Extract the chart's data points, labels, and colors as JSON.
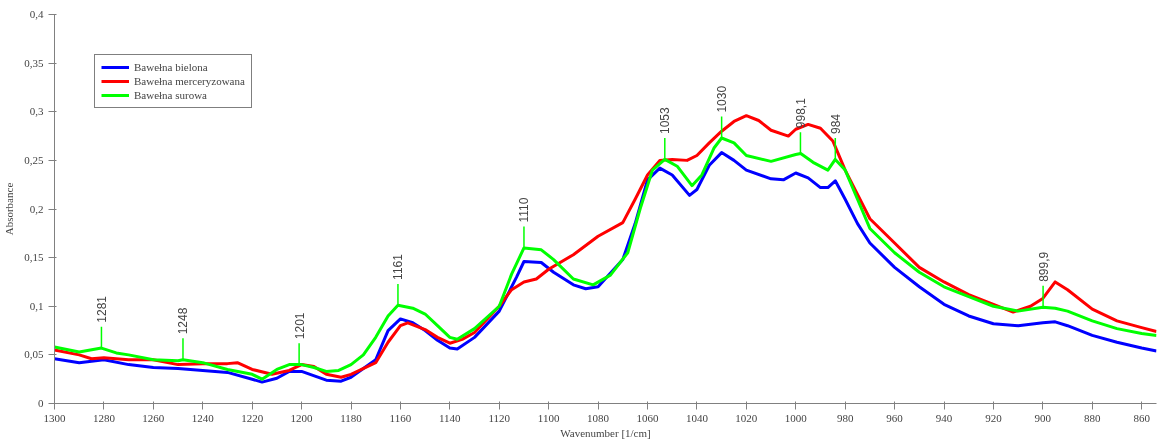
{
  "chart_data": {
    "type": "line",
    "xlabel": "Wavenumber [1/cm]",
    "ylabel": "Absorbance",
    "xlim": [
      1300,
      854
    ],
    "xticks": [
      1300,
      1280,
      1260,
      1240,
      1220,
      1200,
      1180,
      1160,
      1140,
      1120,
      1100,
      1080,
      1060,
      1040,
      1020,
      1000,
      980,
      960,
      940,
      920,
      900,
      880,
      860
    ],
    "ylim": [
      0,
      0.4
    ],
    "yticks": [
      0,
      {
        "value": 0.05,
        "label": "0,05"
      },
      {
        "value": 0.1,
        "label": "0,1"
      },
      {
        "value": 0.15,
        "label": "0,15"
      },
      {
        "value": 0.2,
        "label": "0,2"
      },
      {
        "value": 0.25,
        "label": "0,25"
      },
      {
        "value": 0.3,
        "label": "0,3"
      },
      {
        "value": 0.35,
        "label": "0,35"
      },
      {
        "value": 0.4,
        "label": "0,4"
      }
    ],
    "grid": false,
    "legend": "top left",
    "marker": "none",
    "line_style": "solid",
    "series": [
      {
        "name": "Bawełna bielona",
        "color": "#0000ff",
        "x": [
          1300,
          1290,
          1280,
          1270,
          1260,
          1250,
          1240,
          1230,
          1220,
          1216,
          1210,
          1205,
          1200,
          1190,
          1184,
          1180,
          1170,
          1165,
          1160,
          1155,
          1150,
          1145,
          1140,
          1137,
          1130,
          1120,
          1113,
          1110,
          1103,
          1098,
          1090,
          1085,
          1080,
          1070,
          1065,
          1060,
          1055,
          1050,
          1043,
          1040,
          1035,
          1030,
          1025,
          1020,
          1010,
          1005,
          1000,
          995,
          990,
          987,
          984,
          980,
          975,
          970,
          960,
          950,
          940,
          930,
          920,
          910,
          900,
          895,
          890,
          880,
          870,
          860,
          854
        ],
        "values": [
          0.046,
          0.042,
          0.045,
          0.04,
          0.037,
          0.036,
          0.034,
          0.032,
          0.025,
          0.022,
          0.026,
          0.033,
          0.033,
          0.024,
          0.023,
          0.027,
          0.045,
          0.075,
          0.087,
          0.083,
          0.075,
          0.065,
          0.057,
          0.056,
          0.068,
          0.095,
          0.13,
          0.146,
          0.145,
          0.135,
          0.122,
          0.118,
          0.12,
          0.148,
          0.185,
          0.23,
          0.242,
          0.235,
          0.214,
          0.22,
          0.245,
          0.258,
          0.25,
          0.24,
          0.231,
          0.23,
          0.237,
          0.232,
          0.222,
          0.222,
          0.229,
          0.21,
          0.185,
          0.165,
          0.14,
          0.12,
          0.102,
          0.09,
          0.082,
          0.08,
          0.083,
          0.084,
          0.08,
          0.07,
          0.063,
          0.057,
          0.054
        ]
      },
      {
        "name": "Bawełna merceryzowana",
        "color": "#ff0000",
        "x": [
          1300,
          1290,
          1285,
          1280,
          1270,
          1260,
          1250,
          1240,
          1230,
          1226,
          1220,
          1212,
          1205,
          1200,
          1195,
          1190,
          1184,
          1180,
          1170,
          1165,
          1160,
          1157,
          1150,
          1145,
          1140,
          1135,
          1130,
          1120,
          1115,
          1110,
          1105,
          1100,
          1090,
          1080,
          1070,
          1065,
          1060,
          1055,
          1050,
          1044,
          1040,
          1035,
          1030,
          1025,
          1020,
          1015,
          1010,
          1003,
          1000,
          995,
          990,
          985,
          980,
          975,
          970,
          960,
          950,
          940,
          930,
          920,
          912,
          905,
          900,
          895,
          890,
          880,
          870,
          860,
          854
        ],
        "values": [
          0.055,
          0.05,
          0.046,
          0.047,
          0.045,
          0.045,
          0.04,
          0.041,
          0.041,
          0.042,
          0.035,
          0.03,
          0.034,
          0.04,
          0.038,
          0.03,
          0.027,
          0.03,
          0.042,
          0.063,
          0.08,
          0.083,
          0.076,
          0.068,
          0.062,
          0.066,
          0.073,
          0.1,
          0.117,
          0.125,
          0.128,
          0.138,
          0.153,
          0.172,
          0.186,
          0.21,
          0.235,
          0.25,
          0.251,
          0.25,
          0.255,
          0.268,
          0.28,
          0.29,
          0.296,
          0.291,
          0.281,
          0.275,
          0.282,
          0.287,
          0.283,
          0.27,
          0.24,
          0.215,
          0.19,
          0.165,
          0.14,
          0.125,
          0.112,
          0.102,
          0.094,
          0.1,
          0.108,
          0.125,
          0.117,
          0.097,
          0.085,
          0.078,
          0.074
        ]
      },
      {
        "name": "Bawełna surowa",
        "color": "#00ff00",
        "x": [
          1300,
          1290,
          1281,
          1275,
          1270,
          1260,
          1250,
          1248,
          1240,
          1230,
          1220,
          1216,
          1210,
          1205,
          1200,
          1195,
          1190,
          1185,
          1180,
          1175,
          1170,
          1165,
          1161,
          1155,
          1150,
          1145,
          1140,
          1137,
          1130,
          1120,
          1115,
          1110,
          1103,
          1098,
          1090,
          1082,
          1075,
          1068,
          1063,
          1058,
          1053,
          1048,
          1042,
          1038,
          1033,
          1030,
          1025,
          1020,
          1010,
          1000,
          998,
          993,
          987,
          984,
          980,
          975,
          970,
          960,
          950,
          940,
          930,
          920,
          910,
          900,
          895,
          890,
          880,
          870,
          860,
          854
        ],
        "values": [
          0.058,
          0.053,
          0.057,
          0.052,
          0.05,
          0.045,
          0.044,
          0.045,
          0.042,
          0.035,
          0.03,
          0.025,
          0.035,
          0.04,
          0.04,
          0.037,
          0.033,
          0.034,
          0.04,
          0.05,
          0.068,
          0.09,
          0.101,
          0.098,
          0.092,
          0.08,
          0.068,
          0.066,
          0.077,
          0.1,
          0.133,
          0.16,
          0.158,
          0.148,
          0.128,
          0.122,
          0.132,
          0.155,
          0.2,
          0.24,
          0.251,
          0.244,
          0.224,
          0.235,
          0.263,
          0.273,
          0.268,
          0.255,
          0.249,
          0.256,
          0.257,
          0.248,
          0.24,
          0.251,
          0.24,
          0.21,
          0.18,
          0.155,
          0.135,
          0.12,
          0.11,
          0.1,
          0.095,
          0.099,
          0.098,
          0.095,
          0.085,
          0.077,
          0.072,
          0.07
        ]
      }
    ],
    "annotations": [
      {
        "text": "1281",
        "x": 1281,
        "y": 0.057
      },
      {
        "text": "1248",
        "x": 1248,
        "y": 0.045
      },
      {
        "text": "1201",
        "x": 1201,
        "y": 0.04
      },
      {
        "text": "1161",
        "x": 1161,
        "y": 0.101
      },
      {
        "text": "1110",
        "x": 1110,
        "y": 0.16
      },
      {
        "text": "1053",
        "x": 1053,
        "y": 0.251
      },
      {
        "text": "1030",
        "x": 1030,
        "y": 0.273
      },
      {
        "text": "998,1",
        "x": 998.1,
        "y": 0.257
      },
      {
        "text": "984",
        "x": 984,
        "y": 0.251
      },
      {
        "text": "899,9",
        "x": 899.9,
        "y": 0.099
      }
    ]
  }
}
